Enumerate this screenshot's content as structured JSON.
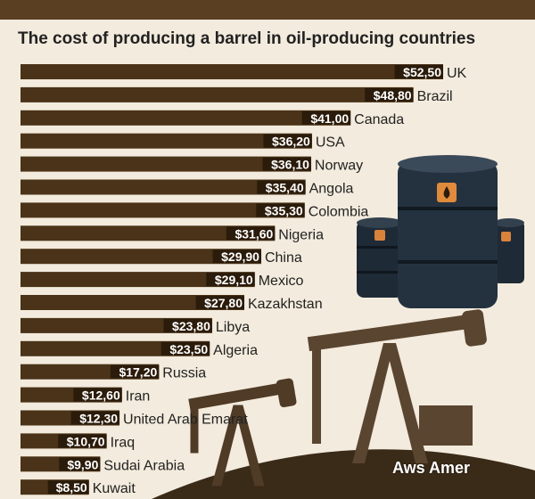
{
  "title": "The cost of producing a barrel in oil-producing countries",
  "watermark": "Aws Amer",
  "colors": {
    "bar": "#4a3318",
    "value_box": "#2b1b0a",
    "background": "#f3ebdd",
    "band": "#5a3f22"
  },
  "chart_data": {
    "type": "bar",
    "orientation": "horizontal",
    "title": "The cost of producing a barrel in oil-producing countries",
    "xlabel": "",
    "ylabel": "",
    "xlim": [
      0,
      52.5
    ],
    "grid": false,
    "categories": [
      "UK",
      "Brazil",
      "Canada",
      "USA",
      "Norway",
      "Angola",
      "Colombia",
      "Nigeria",
      "China",
      "Mexico",
      "Kazakhstan",
      "Libya",
      "Algeria",
      "Russia",
      "Iran",
      "United Arab Emarat",
      "Iraq",
      "Sudai Arabia",
      "Kuwait"
    ],
    "values": [
      52.5,
      48.8,
      41.0,
      36.2,
      36.1,
      35.4,
      35.3,
      31.6,
      29.9,
      29.1,
      27.8,
      23.8,
      23.5,
      17.2,
      12.6,
      12.3,
      10.7,
      9.9,
      8.5
    ],
    "value_labels": [
      "$52,50",
      "$48,80",
      "$41,00",
      "$36,20",
      "$36,10",
      "$35,40",
      "$35,30",
      "$31,60",
      "$29,90",
      "$29,10",
      "$27,80",
      "$23,80",
      "$23,50",
      "$17,20",
      "$12,60",
      "$12,30",
      "$10,70",
      "$9,90",
      "$8,50"
    ]
  }
}
